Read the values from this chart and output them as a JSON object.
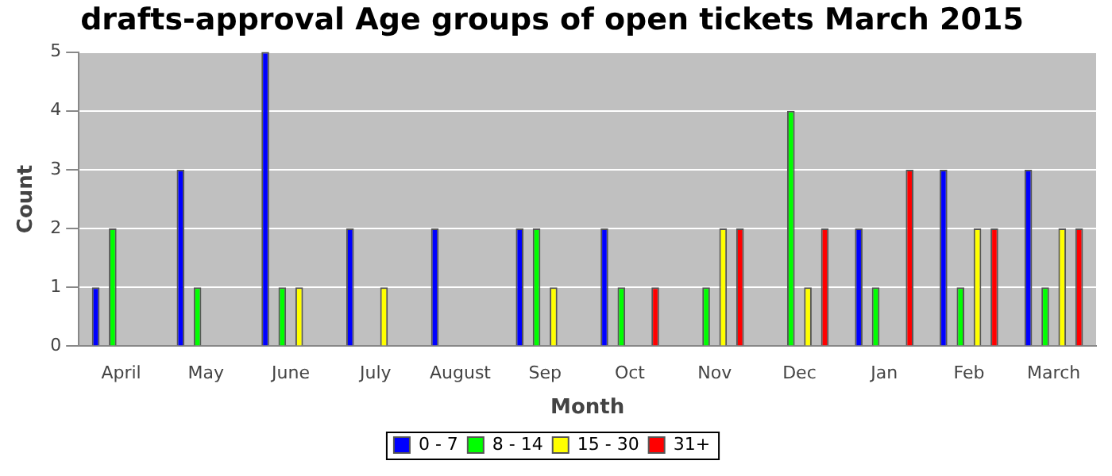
{
  "chart_data": {
    "type": "bar",
    "title": "drafts-approval Age groups of open tickets March 2015",
    "xlabel": "Month",
    "ylabel": "Count",
    "categories": [
      "April",
      "May",
      "June",
      "July",
      "August",
      "Sep",
      "Oct",
      "Nov",
      "Dec",
      "Jan",
      "Feb",
      "March"
    ],
    "series": [
      {
        "name": "0 - 7",
        "color": "#0000ff",
        "values": [
          1,
          3,
          5,
          2,
          2,
          2,
          2,
          0,
          0,
          2,
          3,
          3
        ]
      },
      {
        "name": "8 - 14",
        "color": "#00ff00",
        "values": [
          2,
          1,
          1,
          0,
          0,
          2,
          1,
          1,
          4,
          1,
          1,
          1
        ]
      },
      {
        "name": "15 - 30",
        "color": "#ffff00",
        "values": [
          0,
          0,
          1,
          1,
          0,
          1,
          0,
          2,
          1,
          0,
          2,
          2
        ]
      },
      {
        "name": "31+",
        "color": "#ff0000",
        "values": [
          0,
          0,
          0,
          0,
          0,
          0,
          1,
          2,
          2,
          3,
          2,
          2
        ]
      }
    ],
    "ylim": [
      0,
      5
    ],
    "yticks": [
      0,
      1,
      2,
      3,
      4,
      5
    ],
    "grid": "y",
    "legend": "bottom"
  }
}
